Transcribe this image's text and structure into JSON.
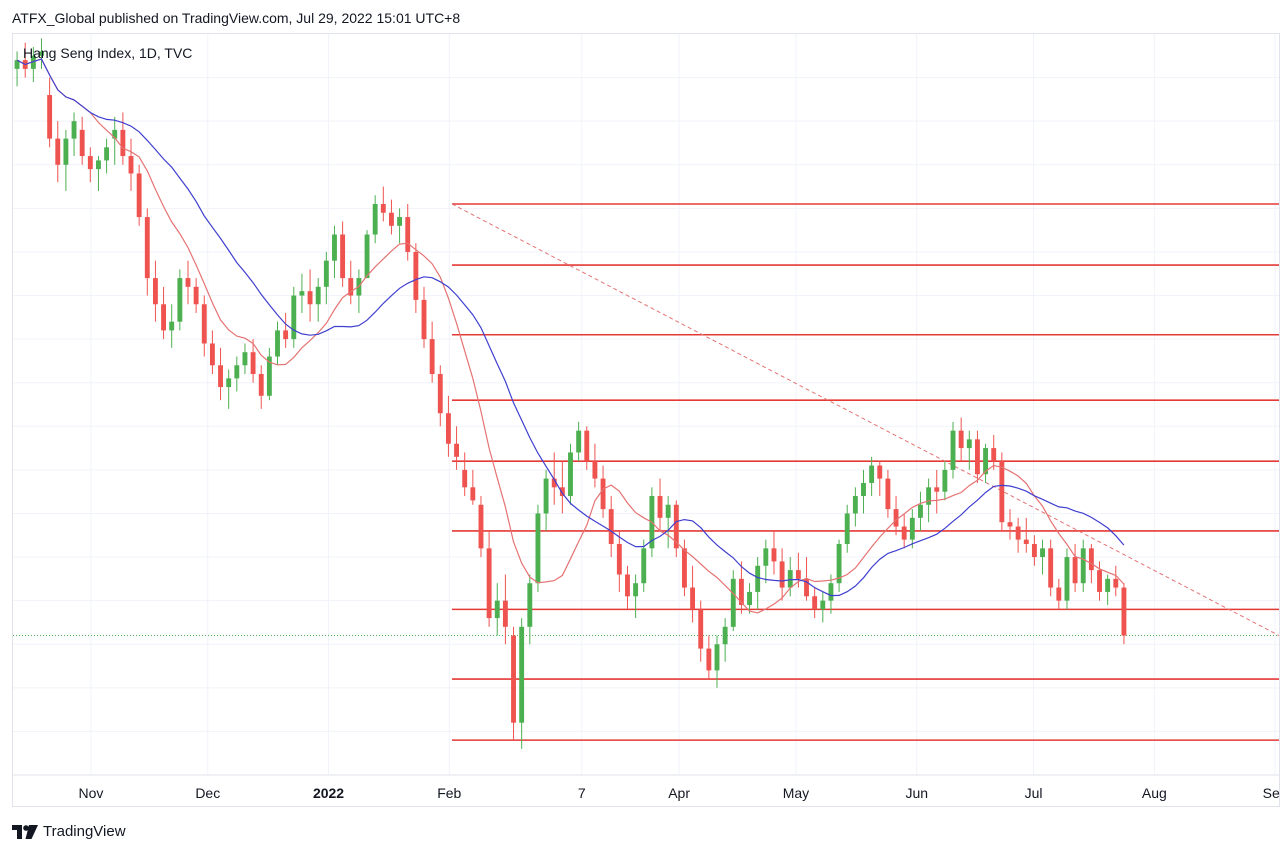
{
  "header": {
    "published_by": "ATFX_Global published on TradingView.com, Jul 29, 2022 15:01 UTC+8",
    "symbol": "Hang Seng Index, 1D, TVC"
  },
  "footer": {
    "brand": "TradingView",
    "logo_icon": "tradingview-logo-icon"
  },
  "colors": {
    "up": "#4caf50",
    "down": "#ef5350",
    "ma_fast": "#e57373",
    "ma_slow": "#3f3fd0",
    "level": "#e53935",
    "trendline": "#e57373",
    "grid": "#f0f3fa"
  },
  "chart_data": {
    "type": "candlestick",
    "x_ticks": [
      {
        "label": "Nov",
        "date": "2021-11-01"
      },
      {
        "label": "Dec",
        "date": "2021-12-01"
      },
      {
        "label": "2022",
        "date": "2022-01-01",
        "bold": true
      },
      {
        "label": "Feb",
        "date": "2022-02-01"
      },
      {
        "label": "7",
        "date": "2022-03-07"
      },
      {
        "label": "Apr",
        "date": "2022-04-01"
      },
      {
        "label": "May",
        "date": "2022-05-01"
      },
      {
        "label": "Jun",
        "date": "2022-06-01"
      },
      {
        "label": "Jul",
        "date": "2022-07-01"
      },
      {
        "label": "Aug",
        "date": "2022-08-01"
      },
      {
        "label": "Sep",
        "date": "2022-09-01"
      }
    ],
    "x_range": [
      "2021-10-12",
      "2022-09-02"
    ],
    "y_range": [
      18000,
      26500
    ],
    "grid": true,
    "candles": [
      [
        26100,
        26300,
        25900,
        26200
      ],
      [
        26200,
        26400,
        26000,
        26100
      ],
      [
        26100,
        26350,
        25950,
        26250
      ],
      [
        26250,
        26450,
        26100,
        26300
      ],
      [
        25800,
        26000,
        25200,
        25300
      ],
      [
        25300,
        25500,
        24800,
        25000
      ],
      [
        25000,
        25400,
        24700,
        25300
      ],
      [
        25300,
        25600,
        25100,
        25500
      ],
      [
        25400,
        25550,
        25000,
        25100
      ],
      [
        25100,
        25200,
        24800,
        24950
      ],
      [
        24950,
        25100,
        24700,
        25050
      ],
      [
        25050,
        25300,
        24900,
        25200
      ],
      [
        25300,
        25550,
        25000,
        25400
      ],
      [
        25400,
        25600,
        25000,
        25100
      ],
      [
        25100,
        25300,
        24700,
        24900
      ],
      [
        24900,
        25000,
        24300,
        24400
      ],
      [
        24400,
        24500,
        23500,
        23700
      ],
      [
        23700,
        23900,
        23200,
        23400
      ],
      [
        23400,
        23600,
        23000,
        23100
      ],
      [
        23100,
        23400,
        22900,
        23200
      ],
      [
        23200,
        23800,
        23100,
        23700
      ],
      [
        23700,
        23900,
        23400,
        23600
      ],
      [
        23600,
        23700,
        23300,
        23400
      ],
      [
        23400,
        23500,
        22800,
        22950
      ],
      [
        22950,
        23100,
        22600,
        22700
      ],
      [
        22700,
        22900,
        22300,
        22450
      ],
      [
        22450,
        22650,
        22200,
        22550
      ],
      [
        22550,
        22800,
        22400,
        22700
      ],
      [
        22700,
        22950,
        22600,
        22850
      ],
      [
        22850,
        23000,
        22500,
        22600
      ],
      [
        22600,
        22700,
        22200,
        22350
      ],
      [
        22350,
        22900,
        22300,
        22800
      ],
      [
        22800,
        23200,
        22700,
        23100
      ],
      [
        23100,
        23300,
        22900,
        23000
      ],
      [
        23000,
        23600,
        22900,
        23500
      ],
      [
        23500,
        23750,
        23300,
        23550
      ],
      [
        23550,
        23800,
        23200,
        23400
      ],
      [
        23400,
        23700,
        23200,
        23600
      ],
      [
        23600,
        24000,
        23400,
        23900
      ],
      [
        23900,
        24300,
        23700,
        24200
      ],
      [
        24200,
        24350,
        23600,
        23700
      ],
      [
        23700,
        23900,
        23400,
        23500
      ],
      [
        23500,
        23800,
        23300,
        23700
      ],
      [
        23700,
        24250,
        23700,
        24200
      ],
      [
        24200,
        24650,
        24100,
        24550
      ],
      [
        24550,
        24750,
        24350,
        24450
      ],
      [
        24450,
        24600,
        24200,
        24300
      ],
      [
        24300,
        24500,
        24100,
        24400
      ],
      [
        24400,
        24550,
        23900,
        24000
      ],
      [
        24000,
        24100,
        23300,
        23450
      ],
      [
        23450,
        23600,
        22900,
        23000
      ],
      [
        23000,
        23200,
        22500,
        22600
      ],
      [
        22600,
        22700,
        22000,
        22150
      ],
      [
        22150,
        22350,
        21650,
        21800
      ],
      [
        21800,
        22000,
        21500,
        21650
      ],
      [
        21500,
        21700,
        21200,
        21300
      ],
      [
        21300,
        21500,
        21100,
        21150
      ],
      [
        21100,
        21200,
        20500,
        20600
      ],
      [
        20600,
        20800,
        19700,
        19800
      ],
      [
        19800,
        20200,
        19600,
        20000
      ],
      [
        20000,
        20300,
        19500,
        19700
      ],
      [
        19600,
        19700,
        18400,
        18600
      ],
      [
        18600,
        19800,
        18300,
        19700
      ],
      [
        19700,
        20300,
        19500,
        20200
      ],
      [
        20200,
        21100,
        20100,
        21000
      ],
      [
        21000,
        21500,
        20800,
        21400
      ],
      [
        21400,
        21700,
        21100,
        21300
      ],
      [
        21300,
        21600,
        21000,
        21200
      ],
      [
        21200,
        21800,
        21100,
        21700
      ],
      [
        21700,
        22050,
        21600,
        21950
      ],
      [
        21950,
        22000,
        21500,
        21600
      ],
      [
        21600,
        21800,
        21300,
        21400
      ],
      [
        21400,
        21550,
        20950,
        21050
      ],
      [
        21050,
        21200,
        20500,
        20650
      ],
      [
        20650,
        20800,
        20100,
        20300
      ],
      [
        20300,
        20400,
        19900,
        20050
      ],
      [
        20050,
        20300,
        19800,
        20200
      ],
      [
        20200,
        20700,
        20100,
        20600
      ],
      [
        20600,
        21300,
        20500,
        21200
      ],
      [
        21200,
        21400,
        20800,
        20950
      ],
      [
        20950,
        21200,
        20600,
        21100
      ],
      [
        21100,
        21150,
        20500,
        20600
      ],
      [
        20600,
        20700,
        20050,
        20150
      ],
      [
        20150,
        20400,
        19750,
        19900
      ],
      [
        19900,
        20000,
        19300,
        19450
      ],
      [
        19450,
        19600,
        19100,
        19200
      ],
      [
        19200,
        19600,
        19000,
        19500
      ],
      [
        19500,
        19800,
        19300,
        19700
      ],
      [
        19700,
        20350,
        19650,
        20250
      ],
      [
        20250,
        20450,
        19850,
        19950
      ],
      [
        19950,
        20200,
        19850,
        20100
      ],
      [
        20100,
        20500,
        19900,
        20400
      ],
      [
        20400,
        20700,
        20200,
        20600
      ],
      [
        20600,
        20800,
        20300,
        20450
      ],
      [
        20450,
        20600,
        20000,
        20150
      ],
      [
        20150,
        20500,
        20050,
        20350
      ],
      [
        20350,
        20550,
        20150,
        20250
      ],
      [
        20250,
        20500,
        20000,
        20050
      ],
      [
        20050,
        20150,
        19800,
        19900
      ],
      [
        19900,
        20100,
        19750,
        20000
      ],
      [
        20000,
        20300,
        19850,
        20200
      ],
      [
        20200,
        20700,
        20100,
        20650
      ],
      [
        20650,
        21100,
        20550,
        21000
      ],
      [
        21000,
        21300,
        20850,
        21200
      ],
      [
        21200,
        21500,
        21000,
        21350
      ],
      [
        21350,
        21650,
        21200,
        21550
      ],
      [
        21550,
        21600,
        21200,
        21400
      ],
      [
        21400,
        21500,
        20950,
        21050
      ],
      [
        21050,
        21200,
        20750,
        20850
      ],
      [
        20850,
        21000,
        20600,
        20700
      ],
      [
        20700,
        21050,
        20600,
        20950
      ],
      [
        20950,
        21250,
        20800,
        21100
      ],
      [
        21100,
        21400,
        20900,
        21300
      ],
      [
        21300,
        21500,
        21000,
        21250
      ],
      [
        21250,
        21600,
        21150,
        21500
      ],
      [
        21500,
        22050,
        21400,
        21950
      ],
      [
        21950,
        22100,
        21600,
        21750
      ],
      [
        21750,
        21950,
        21500,
        21850
      ],
      [
        21850,
        21950,
        21350,
        21450
      ],
      [
        21450,
        21800,
        21350,
        21750
      ],
      [
        21750,
        21900,
        21500,
        21600
      ],
      [
        21600,
        21700,
        20800,
        20900
      ],
      [
        20900,
        21050,
        20700,
        20850
      ],
      [
        20850,
        20950,
        20550,
        20700
      ],
      [
        20700,
        20950,
        20550,
        20650
      ],
      [
        20650,
        20750,
        20400,
        20500
      ],
      [
        20500,
        20700,
        20300,
        20600
      ],
      [
        20600,
        20700,
        20050,
        20150
      ],
      [
        20150,
        20250,
        19900,
        20000
      ],
      [
        20000,
        20600,
        19900,
        20500
      ],
      [
        20500,
        20650,
        20100,
        20200
      ],
      [
        20200,
        20700,
        20100,
        20600
      ],
      [
        20600,
        20650,
        20200,
        20350
      ],
      [
        20350,
        20450,
        20000,
        20100
      ],
      [
        20100,
        20300,
        19950,
        20250
      ],
      [
        20250,
        20400,
        20050,
        20150
      ],
      [
        20150,
        20200,
        19500,
        19600
      ]
    ],
    "ma_fast": [],
    "ma_slow": [],
    "horizontal_levels": [
      24550,
      23850,
      23050,
      22300,
      21600,
      20800,
      19900,
      19100,
      18400
    ],
    "trendline": [
      [
        "2022-02-01",
        24550
      ],
      [
        "2022-08-31",
        19600
      ]
    ]
  }
}
